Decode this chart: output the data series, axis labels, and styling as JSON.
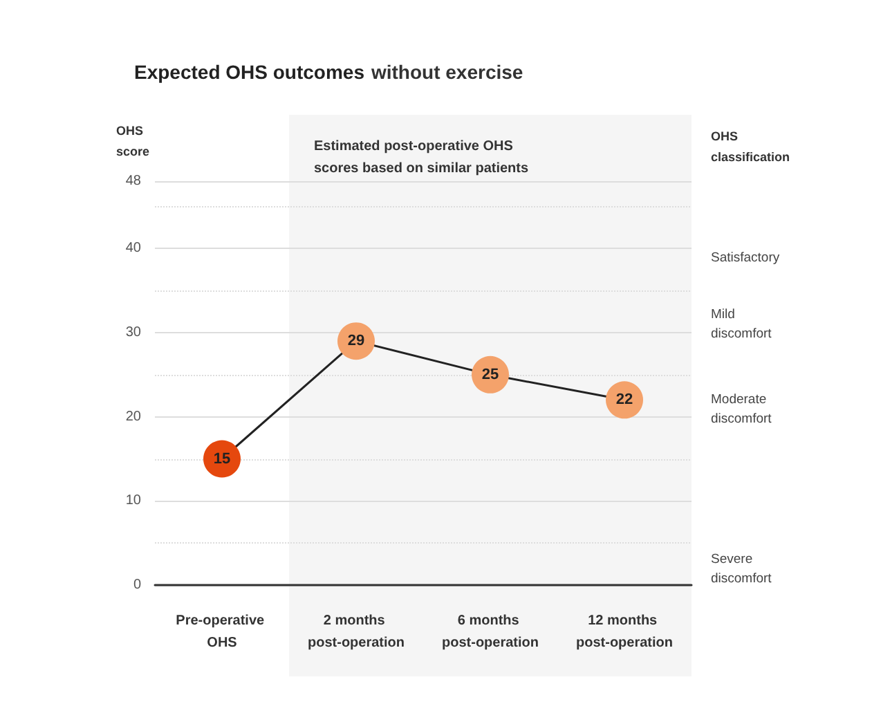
{
  "chart_data": {
    "type": "line",
    "title": "Expected OHS outcomes",
    "subtitle": "without exercise",
    "ylabel": "OHS score",
    "y2label": "OHS classification",
    "categories": [
      "Pre-operative OHS",
      "2 months post-operation",
      "6 months post-operation",
      "12 months post-operation"
    ],
    "series": [
      {
        "color": "#222222",
        "colors": [
          "#e5480e",
          "#f4a26b",
          "#f4a26b",
          "#f4a26b"
        ],
        "values": [
          15,
          29,
          25,
          22
        ]
      }
    ],
    "ylim": [
      0,
      48
    ],
    "yticks": [
      0,
      {
        "value": 5,
        "label": null
      },
      10,
      {
        "value": 15,
        "label": null
      },
      20,
      {
        "value": 25,
        "label": null
      },
      30,
      {
        "value": 35,
        "label": null
      },
      40,
      {
        "value": 45,
        "label": null
      },
      48
    ],
    "annotations": [
      "Satisfactory",
      "Mild discomfort",
      "Moderate discomfort",
      "Severe discomfort"
    ],
    "bands": [
      {
        "axis": "x",
        "from": "2 months post-operation",
        "to": "12 months post-operation",
        "label": "Estimated post-operative OHS scores based on similar patients",
        "color": "#f5f5f5"
      }
    ],
    "grid": "y",
    "marker": "circle",
    "line_style": "solid",
    "data_labels": true
  }
}
